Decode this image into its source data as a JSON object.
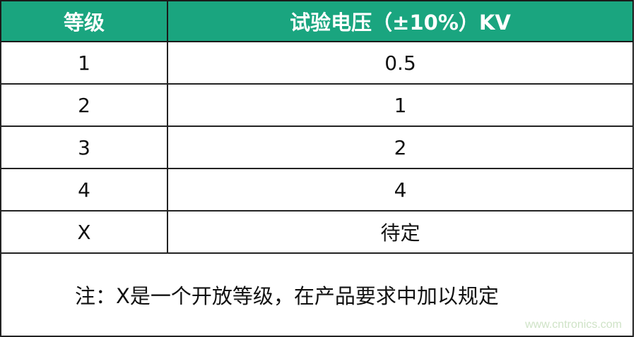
{
  "header": {
    "col1": "等级",
    "col2": "试验电压（±10%）KV"
  },
  "rows": [
    {
      "level": "1",
      "voltage": "0.5"
    },
    {
      "level": "2",
      "voltage": "1"
    },
    {
      "level": "3",
      "voltage": "2"
    },
    {
      "level": "4",
      "voltage": "4"
    },
    {
      "level": "X",
      "voltage": "待定"
    }
  ],
  "note": "注：X是一个开放等级，在产品要求中加以规定",
  "watermark": "www.cntronics.com",
  "colors": {
    "header_bg": "#1aa57f"
  }
}
